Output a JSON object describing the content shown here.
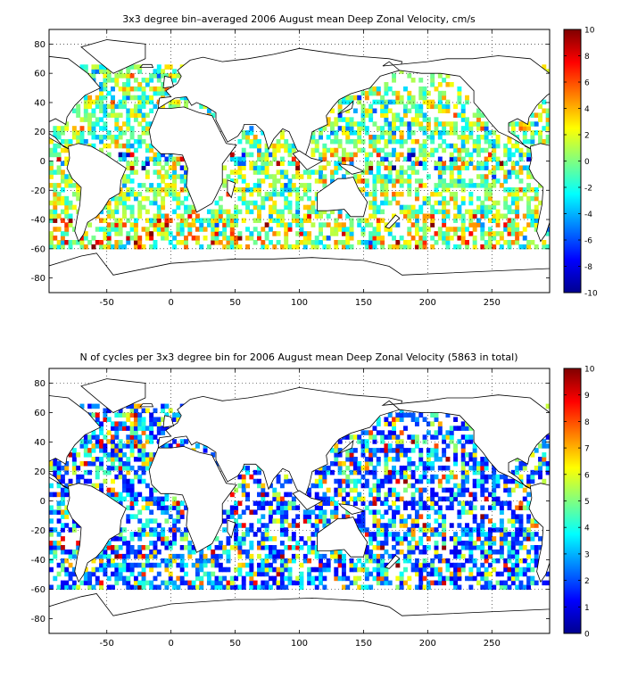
{
  "chart_data": [
    {
      "type": "heatmap",
      "title": "3x3 degree bin–averaged 2006 August mean Deep Zonal Velocity, cm/s",
      "xlabel": "",
      "ylabel": "",
      "xlim": [
        -95,
        295
      ],
      "ylim": [
        -90,
        90
      ],
      "x_ticks": [
        -50,
        0,
        50,
        100,
        150,
        200,
        250
      ],
      "y_ticks": [
        80,
        60,
        40,
        20,
        0,
        -20,
        -40,
        -60,
        -80
      ],
      "grid": true,
      "colorbar": {
        "min": -10,
        "max": 10,
        "ticks": [
          10,
          8,
          6,
          4,
          2,
          0,
          -2,
          -4,
          -6,
          -8,
          -10
        ],
        "colormap": "jet"
      },
      "bin_size_deg": 3,
      "seed": 12345
    },
    {
      "type": "heatmap",
      "title": "N of cycles per 3x3 degree bin for 2006 August mean Deep Zonal Velocity (5863 in total)",
      "xlabel": "",
      "ylabel": "",
      "xlim": [
        -95,
        295
      ],
      "ylim": [
        -90,
        90
      ],
      "x_ticks": [
        -50,
        0,
        50,
        100,
        150,
        200,
        250
      ],
      "y_ticks": [
        80,
        60,
        40,
        20,
        0,
        -20,
        -40,
        -60,
        -80
      ],
      "grid": true,
      "colorbar": {
        "min": 0,
        "max": 10,
        "ticks": [
          10,
          9,
          8,
          7,
          6,
          5,
          4,
          3,
          2,
          1,
          0
        ],
        "colormap": "jet"
      },
      "bin_size_deg": 3,
      "total_cycles": 5863,
      "seed": 67890
    }
  ]
}
